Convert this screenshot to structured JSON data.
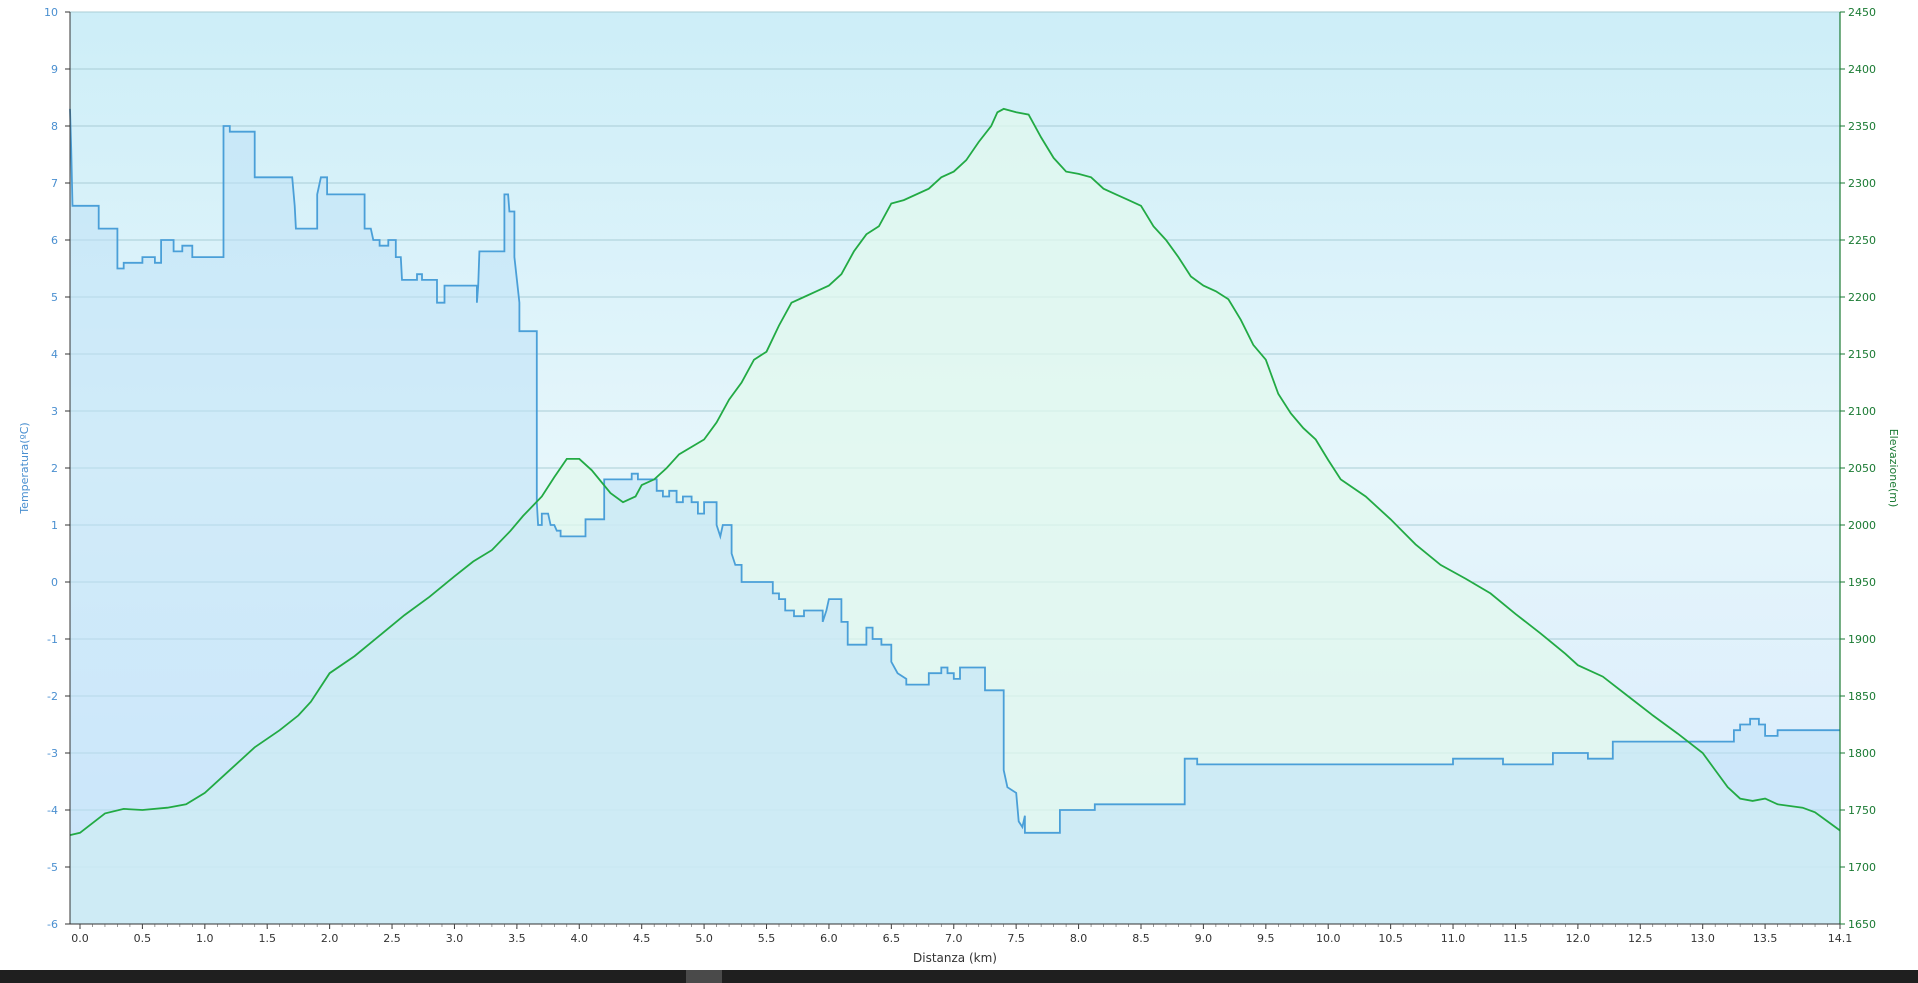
{
  "chart_data": {
    "type": "line",
    "title": "",
    "xlabel": "Distanza  (km)",
    "ylabel_left": "Temperatura(ºC)",
    "ylabel_right": "Elevazione(m)",
    "xlim": [
      -0.08,
      14.1
    ],
    "ylim_left": [
      -6,
      10
    ],
    "ylim_right": [
      1650,
      2450
    ],
    "grid": true,
    "legend": "none",
    "x_ticks": [
      "0.0",
      "0.5",
      "1.0",
      "1.5",
      "2.0",
      "2.5",
      "3.0",
      "3.5",
      "4.0",
      "4.5",
      "5.0",
      "5.5",
      "6.0",
      "6.5",
      "7.0",
      "7.5",
      "8.0",
      "8.5",
      "9.0",
      "9.5",
      "10.0",
      "10.5",
      "11.0",
      "11.5",
      "12.0",
      "12.5",
      "13.0",
      "13.5",
      "14.1"
    ],
    "y_left_ticks": [
      "-6",
      "-5",
      "-4",
      "-3",
      "-2",
      "-1",
      "0",
      "1",
      "2",
      "3",
      "4",
      "5",
      "6",
      "7",
      "8",
      "9",
      "10"
    ],
    "y_right_ticks": [
      "1650",
      "1700",
      "1750",
      "1800",
      "1850",
      "1900",
      "1950",
      "2000",
      "2050",
      "2100",
      "2150",
      "2200",
      "2250",
      "2300",
      "2350",
      "2400",
      "2450"
    ],
    "series": [
      {
        "axis": "left",
        "color": "#4a9fd8",
        "step": true,
        "points": [
          [
            -0.08,
            8.3
          ],
          [
            -0.07,
            7.6
          ],
          [
            -0.06,
            6.6
          ],
          [
            0.15,
            6.6
          ],
          [
            0.15,
            6.2
          ],
          [
            0.3,
            6.2
          ],
          [
            0.3,
            5.5
          ],
          [
            0.35,
            5.5
          ],
          [
            0.35,
            5.6
          ],
          [
            0.5,
            5.6
          ],
          [
            0.5,
            5.7
          ],
          [
            0.6,
            5.7
          ],
          [
            0.6,
            5.6
          ],
          [
            0.65,
            5.6
          ],
          [
            0.65,
            6.0
          ],
          [
            0.75,
            6.0
          ],
          [
            0.75,
            5.8
          ],
          [
            0.82,
            5.8
          ],
          [
            0.82,
            5.9
          ],
          [
            0.9,
            5.9
          ],
          [
            0.9,
            5.7
          ],
          [
            1.15,
            5.7
          ],
          [
            1.15,
            8.0
          ],
          [
            1.2,
            8.0
          ],
          [
            1.2,
            7.9
          ],
          [
            1.4,
            7.9
          ],
          [
            1.4,
            7.1
          ],
          [
            1.7,
            7.1
          ],
          [
            1.72,
            6.6
          ],
          [
            1.73,
            6.2
          ],
          [
            1.9,
            6.2
          ],
          [
            1.9,
            6.8
          ],
          [
            1.93,
            7.1
          ],
          [
            1.98,
            7.1
          ],
          [
            1.98,
            6.8
          ],
          [
            2.28,
            6.8
          ],
          [
            2.28,
            6.2
          ],
          [
            2.33,
            6.2
          ],
          [
            2.35,
            6.0
          ],
          [
            2.4,
            6.0
          ],
          [
            2.4,
            5.9
          ],
          [
            2.47,
            5.9
          ],
          [
            2.47,
            6.0
          ],
          [
            2.53,
            6.0
          ],
          [
            2.53,
            5.7
          ],
          [
            2.57,
            5.7
          ],
          [
            2.58,
            5.3
          ],
          [
            2.7,
            5.3
          ],
          [
            2.7,
            5.4
          ],
          [
            2.74,
            5.4
          ],
          [
            2.74,
            5.3
          ],
          [
            2.86,
            5.3
          ],
          [
            2.86,
            4.9
          ],
          [
            2.92,
            4.9
          ],
          [
            2.92,
            5.2
          ],
          [
            3.18,
            5.2
          ],
          [
            3.18,
            4.9
          ],
          [
            3.19,
            5.2
          ],
          [
            3.2,
            5.8
          ],
          [
            3.4,
            5.8
          ],
          [
            3.4,
            6.8
          ],
          [
            3.43,
            6.8
          ],
          [
            3.44,
            6.5
          ],
          [
            3.48,
            6.5
          ],
          [
            3.48,
            5.7
          ],
          [
            3.5,
            5.3
          ],
          [
            3.52,
            4.9
          ],
          [
            3.52,
            4.4
          ],
          [
            3.66,
            4.4
          ],
          [
            3.66,
            1.4
          ],
          [
            3.67,
            1.0
          ],
          [
            3.7,
            1.0
          ],
          [
            3.7,
            1.2
          ],
          [
            3.75,
            1.2
          ],
          [
            3.77,
            1.0
          ],
          [
            3.8,
            1.0
          ],
          [
            3.82,
            0.9
          ],
          [
            3.85,
            0.9
          ],
          [
            3.85,
            0.8
          ],
          [
            4.05,
            0.8
          ],
          [
            4.05,
            1.1
          ],
          [
            4.2,
            1.1
          ],
          [
            4.2,
            1.8
          ],
          [
            4.42,
            1.8
          ],
          [
            4.42,
            1.9
          ],
          [
            4.47,
            1.9
          ],
          [
            4.47,
            1.8
          ],
          [
            4.62,
            1.8
          ],
          [
            4.62,
            1.6
          ],
          [
            4.67,
            1.6
          ],
          [
            4.67,
            1.5
          ],
          [
            4.72,
            1.5
          ],
          [
            4.72,
            1.6
          ],
          [
            4.78,
            1.6
          ],
          [
            4.78,
            1.4
          ],
          [
            4.83,
            1.4
          ],
          [
            4.83,
            1.5
          ],
          [
            4.9,
            1.5
          ],
          [
            4.9,
            1.4
          ],
          [
            4.95,
            1.4
          ],
          [
            4.95,
            1.2
          ],
          [
            5.0,
            1.2
          ],
          [
            5.0,
            1.4
          ],
          [
            5.1,
            1.4
          ],
          [
            5.1,
            1.0
          ],
          [
            5.13,
            0.8
          ],
          [
            5.15,
            1.0
          ],
          [
            5.22,
            1.0
          ],
          [
            5.22,
            0.5
          ],
          [
            5.25,
            0.3
          ],
          [
            5.3,
            0.3
          ],
          [
            5.3,
            0.0
          ],
          [
            5.55,
            0.0
          ],
          [
            5.55,
            -0.2
          ],
          [
            5.6,
            -0.2
          ],
          [
            5.6,
            -0.3
          ],
          [
            5.65,
            -0.3
          ],
          [
            5.65,
            -0.5
          ],
          [
            5.72,
            -0.5
          ],
          [
            5.72,
            -0.6
          ],
          [
            5.8,
            -0.6
          ],
          [
            5.8,
            -0.5
          ],
          [
            5.95,
            -0.5
          ],
          [
            5.95,
            -0.7
          ],
          [
            5.98,
            -0.5
          ],
          [
            6.0,
            -0.3
          ],
          [
            6.1,
            -0.3
          ],
          [
            6.1,
            -0.7
          ],
          [
            6.15,
            -0.7
          ],
          [
            6.15,
            -1.1
          ],
          [
            6.3,
            -1.1
          ],
          [
            6.3,
            -0.8
          ],
          [
            6.35,
            -0.8
          ],
          [
            6.35,
            -1.0
          ],
          [
            6.42,
            -1.0
          ],
          [
            6.42,
            -1.1
          ],
          [
            6.5,
            -1.1
          ],
          [
            6.5,
            -1.4
          ],
          [
            6.55,
            -1.6
          ],
          [
            6.62,
            -1.7
          ],
          [
            6.62,
            -1.8
          ],
          [
            6.8,
            -1.8
          ],
          [
            6.8,
            -1.6
          ],
          [
            6.9,
            -1.6
          ],
          [
            6.9,
            -1.5
          ],
          [
            6.95,
            -1.5
          ],
          [
            6.95,
            -1.6
          ],
          [
            7.0,
            -1.6
          ],
          [
            7.0,
            -1.7
          ],
          [
            7.05,
            -1.7
          ],
          [
            7.05,
            -1.5
          ],
          [
            7.25,
            -1.5
          ],
          [
            7.25,
            -1.9
          ],
          [
            7.4,
            -1.9
          ],
          [
            7.4,
            -3.3
          ],
          [
            7.43,
            -3.6
          ],
          [
            7.5,
            -3.7
          ],
          [
            7.52,
            -4.2
          ],
          [
            7.55,
            -4.3
          ],
          [
            7.57,
            -4.1
          ],
          [
            7.57,
            -4.4
          ],
          [
            7.85,
            -4.4
          ],
          [
            7.85,
            -4.0
          ],
          [
            8.13,
            -4.0
          ],
          [
            8.13,
            -3.9
          ],
          [
            8.85,
            -3.9
          ],
          [
            8.85,
            -3.1
          ],
          [
            8.95,
            -3.1
          ],
          [
            8.95,
            -3.2
          ],
          [
            11.0,
            -3.2
          ],
          [
            11.0,
            -3.1
          ],
          [
            11.4,
            -3.1
          ],
          [
            11.4,
            -3.2
          ],
          [
            11.8,
            -3.2
          ],
          [
            11.8,
            -3.0
          ],
          [
            12.08,
            -3.0
          ],
          [
            12.08,
            -3.1
          ],
          [
            12.28,
            -3.1
          ],
          [
            12.28,
            -2.8
          ],
          [
            13.25,
            -2.8
          ],
          [
            13.25,
            -2.6
          ],
          [
            13.3,
            -2.6
          ],
          [
            13.3,
            -2.5
          ],
          [
            13.38,
            -2.5
          ],
          [
            13.38,
            -2.4
          ],
          [
            13.45,
            -2.4
          ],
          [
            13.45,
            -2.5
          ],
          [
            13.5,
            -2.5
          ],
          [
            13.5,
            -2.7
          ],
          [
            13.6,
            -2.7
          ],
          [
            13.6,
            -2.6
          ],
          [
            14.1,
            -2.6
          ]
        ]
      },
      {
        "axis": "right",
        "color": "#22aa44",
        "step": false,
        "points": [
          [
            -0.08,
            1728
          ],
          [
            0.0,
            1730
          ],
          [
            0.2,
            1747
          ],
          [
            0.35,
            1751
          ],
          [
            0.5,
            1750
          ],
          [
            0.7,
            1752
          ],
          [
            0.85,
            1755
          ],
          [
            1.0,
            1765
          ],
          [
            1.2,
            1785
          ],
          [
            1.4,
            1805
          ],
          [
            1.6,
            1820
          ],
          [
            1.75,
            1833
          ],
          [
            1.85,
            1845
          ],
          [
            2.0,
            1870
          ],
          [
            2.2,
            1885
          ],
          [
            2.4,
            1903
          ],
          [
            2.6,
            1921
          ],
          [
            2.8,
            1937
          ],
          [
            3.0,
            1955
          ],
          [
            3.15,
            1968
          ],
          [
            3.3,
            1978
          ],
          [
            3.45,
            1995
          ],
          [
            3.55,
            2008
          ],
          [
            3.7,
            2025
          ],
          [
            3.8,
            2042
          ],
          [
            3.9,
            2058
          ],
          [
            4.0,
            2058
          ],
          [
            4.1,
            2048
          ],
          [
            4.25,
            2028
          ],
          [
            4.35,
            2020
          ],
          [
            4.45,
            2025
          ],
          [
            4.5,
            2035
          ],
          [
            4.6,
            2040
          ],
          [
            4.7,
            2050
          ],
          [
            4.8,
            2062
          ],
          [
            5.0,
            2075
          ],
          [
            5.1,
            2090
          ],
          [
            5.2,
            2110
          ],
          [
            5.3,
            2125
          ],
          [
            5.4,
            2145
          ],
          [
            5.5,
            2152
          ],
          [
            5.6,
            2175
          ],
          [
            5.7,
            2195
          ],
          [
            5.8,
            2200
          ],
          [
            5.9,
            2205
          ],
          [
            6.0,
            2210
          ],
          [
            6.1,
            2220
          ],
          [
            6.2,
            2240
          ],
          [
            6.3,
            2255
          ],
          [
            6.4,
            2262
          ],
          [
            6.5,
            2282
          ],
          [
            6.6,
            2285
          ],
          [
            6.8,
            2295
          ],
          [
            6.9,
            2305
          ],
          [
            7.0,
            2310
          ],
          [
            7.1,
            2320
          ],
          [
            7.2,
            2336
          ],
          [
            7.3,
            2350
          ],
          [
            7.35,
            2362
          ],
          [
            7.4,
            2365
          ],
          [
            7.5,
            2362
          ],
          [
            7.6,
            2360
          ],
          [
            7.7,
            2340
          ],
          [
            7.8,
            2322
          ],
          [
            7.9,
            2310
          ],
          [
            8.0,
            2308
          ],
          [
            8.1,
            2305
          ],
          [
            8.2,
            2295
          ],
          [
            8.3,
            2290
          ],
          [
            8.4,
            2285
          ],
          [
            8.5,
            2280
          ],
          [
            8.6,
            2262
          ],
          [
            8.7,
            2250
          ],
          [
            8.8,
            2235
          ],
          [
            8.9,
            2218
          ],
          [
            9.0,
            2210
          ],
          [
            9.1,
            2205
          ],
          [
            9.2,
            2198
          ],
          [
            9.3,
            2180
          ],
          [
            9.4,
            2158
          ],
          [
            9.5,
            2145
          ],
          [
            9.6,
            2115
          ],
          [
            9.7,
            2098
          ],
          [
            9.8,
            2085
          ],
          [
            9.9,
            2075
          ],
          [
            10.0,
            2057
          ],
          [
            10.1,
            2040
          ],
          [
            10.3,
            2025
          ],
          [
            10.5,
            2005
          ],
          [
            10.7,
            1983
          ],
          [
            10.9,
            1965
          ],
          [
            11.1,
            1953
          ],
          [
            11.3,
            1940
          ],
          [
            11.5,
            1922
          ],
          [
            11.7,
            1905
          ],
          [
            11.9,
            1887
          ],
          [
            12.0,
            1877
          ],
          [
            12.2,
            1867
          ],
          [
            12.4,
            1850
          ],
          [
            12.6,
            1833
          ],
          [
            12.8,
            1817
          ],
          [
            13.0,
            1800
          ],
          [
            13.1,
            1785
          ],
          [
            13.2,
            1770
          ],
          [
            13.3,
            1760
          ],
          [
            13.4,
            1758
          ],
          [
            13.5,
            1760
          ],
          [
            13.6,
            1755
          ],
          [
            13.8,
            1752
          ],
          [
            13.9,
            1748
          ],
          [
            14.0,
            1740
          ],
          [
            14.1,
            1732
          ]
        ]
      }
    ]
  }
}
